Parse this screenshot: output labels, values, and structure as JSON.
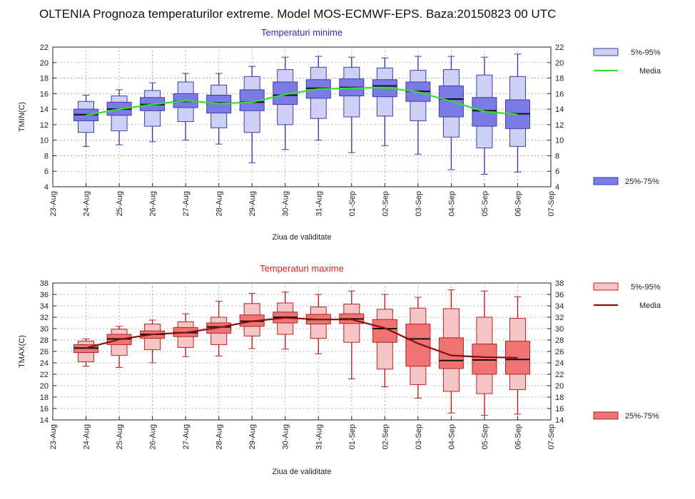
{
  "title": "OLTENIA  Prognoza temperaturilor extreme.  Model MOS-ECMWF-EPS. Baza:20150823 00 UTC",
  "chart_data": [
    {
      "type": "box",
      "title": "Temperaturi minime",
      "title_color": "#2a2ab8",
      "ylabel": "TMIN(C)",
      "xlabel": "Ziua de validitate",
      "ylim": [
        4,
        22
      ],
      "yticks": [
        4,
        6,
        8,
        10,
        12,
        14,
        16,
        18,
        20,
        22
      ],
      "xticks": [
        "23-Aug",
        "24-Aug",
        "25-Aug",
        "26-Aug",
        "27-Aug",
        "28-Aug",
        "29-Aug",
        "30-Aug",
        "31-Aug",
        "01-Sep",
        "02-Sep",
        "03-Sep",
        "04-Sep",
        "05-Sep",
        "06-Sep",
        "07-Sep"
      ],
      "colors": {
        "outer": "#cfd0f5",
        "inner": "#7b7be6",
        "edge": "#3d3da8",
        "mean": "#33dd33"
      },
      "legend": {
        "outer_label": "5%-95%",
        "mean_label": "Media",
        "inner_label": "25%-75%",
        "position": "right"
      },
      "boxes": [
        {
          "day": "24-Aug",
          "p5": 9.2,
          "p25": 12.5,
          "median": 13.3,
          "p75": 14.0,
          "p95": 15.8,
          "p5_box": 11.0,
          "p95_box": 15.0
        },
        {
          "day": "25-Aug",
          "p5": 9.4,
          "p25": 13.2,
          "median": 14.0,
          "p75": 14.9,
          "p95": 16.5,
          "p5_box": 11.2,
          "p95_box": 15.7
        },
        {
          "day": "26-Aug",
          "p5": 9.8,
          "p25": 13.8,
          "median": 14.6,
          "p75": 15.5,
          "p95": 17.4,
          "p5_box": 11.8,
          "p95_box": 16.4
        },
        {
          "day": "27-Aug",
          "p5": 10.0,
          "p25": 14.2,
          "median": 15.0,
          "p75": 16.0,
          "p95": 18.6,
          "p5_box": 12.4,
          "p95_box": 17.5
        },
        {
          "day": "28-Aug",
          "p5": 9.5,
          "p25": 13.5,
          "median": 14.8,
          "p75": 15.8,
          "p95": 18.6,
          "p5_box": 11.6,
          "p95_box": 17.1
        },
        {
          "day": "29-Aug",
          "p5": 7.1,
          "p25": 13.8,
          "median": 14.9,
          "p75": 16.5,
          "p95": 19.5,
          "p5_box": 11.0,
          "p95_box": 18.2
        },
        {
          "day": "30-Aug",
          "p5": 8.8,
          "p25": 14.6,
          "median": 15.8,
          "p75": 17.5,
          "p95": 20.7,
          "p5_box": 12.0,
          "p95_box": 19.1
        },
        {
          "day": "31-Aug",
          "p5": 10.0,
          "p25": 15.4,
          "median": 16.7,
          "p75": 17.8,
          "p95": 20.8,
          "p5_box": 12.8,
          "p95_box": 19.4
        },
        {
          "day": "01-Sep",
          "p5": 8.4,
          "p25": 15.7,
          "median": 16.8,
          "p75": 17.9,
          "p95": 20.7,
          "p5_box": 13.0,
          "p95_box": 19.4
        },
        {
          "day": "02-Sep",
          "p5": 9.3,
          "p25": 15.6,
          "median": 17.0,
          "p75": 17.8,
          "p95": 20.6,
          "p5_box": 13.1,
          "p95_box": 19.3
        },
        {
          "day": "03-Sep",
          "p5": 8.2,
          "p25": 15.0,
          "median": 16.3,
          "p75": 17.5,
          "p95": 20.8,
          "p5_box": 12.5,
          "p95_box": 19.0
        },
        {
          "day": "04-Sep",
          "p5": 6.2,
          "p25": 13.0,
          "median": 15.3,
          "p75": 17.0,
          "p95": 20.8,
          "p5_box": 10.4,
          "p95_box": 19.1
        },
        {
          "day": "05-Sep",
          "p5": 5.6,
          "p25": 11.8,
          "median": 13.8,
          "p75": 15.5,
          "p95": 20.7,
          "p5_box": 9.0,
          "p95_box": 18.4
        },
        {
          "day": "06-Sep",
          "p5": 5.9,
          "p25": 11.5,
          "median": 13.4,
          "p75": 15.2,
          "p95": 21.1,
          "p5_box": 9.2,
          "p95_box": 18.2
        }
      ],
      "mean": [
        13.2,
        14.0,
        14.6,
        15.1,
        14.7,
        14.9,
        15.9,
        16.6,
        16.7,
        16.8,
        16.2,
        15.0,
        13.7,
        13.3
      ]
    },
    {
      "type": "box",
      "title": "Temperaturi maxime",
      "title_color": "#e02020",
      "ylabel": "TMAX(C)",
      "xlabel": "Ziua de validitate",
      "ylim": [
        14,
        38
      ],
      "yticks": [
        14,
        16,
        18,
        20,
        22,
        24,
        26,
        28,
        30,
        32,
        34,
        36,
        38
      ],
      "xticks": [
        "23-Aug",
        "24-Aug",
        "25-Aug",
        "26-Aug",
        "27-Aug",
        "28-Aug",
        "29-Aug",
        "30-Aug",
        "31-Aug",
        "01-Sep",
        "02-Sep",
        "03-Sep",
        "04-Sep",
        "05-Sep",
        "06-Sep",
        "07-Sep"
      ],
      "colors": {
        "outer": "#f6c6c6",
        "inner": "#ee7373",
        "edge": "#b82020",
        "mean": "#8a1010"
      },
      "legend": {
        "outer_label": "5%-95%",
        "mean_label": "Media",
        "inner_label": "25%-75%",
        "position": "right"
      },
      "boxes": [
        {
          "day": "24-Aug",
          "p5": 23.4,
          "p25": 25.8,
          "median": 26.6,
          "p75": 27.2,
          "p95": 28.2,
          "p5_box": 24.2,
          "p95_box": 27.8
        },
        {
          "day": "25-Aug",
          "p5": 23.2,
          "p25": 27.2,
          "median": 28.2,
          "p75": 29.0,
          "p95": 30.4,
          "p5_box": 25.3,
          "p95_box": 29.9
        },
        {
          "day": "26-Aug",
          "p5": 24.0,
          "p25": 28.3,
          "median": 29.0,
          "p75": 29.6,
          "p95": 31.5,
          "p5_box": 26.3,
          "p95_box": 30.8
        },
        {
          "day": "27-Aug",
          "p5": 25.1,
          "p25": 28.6,
          "median": 29.3,
          "p75": 30.2,
          "p95": 32.6,
          "p5_box": 26.7,
          "p95_box": 31.2
        },
        {
          "day": "28-Aug",
          "p5": 25.2,
          "p25": 29.2,
          "median": 30.3,
          "p75": 31.0,
          "p95": 34.8,
          "p5_box": 27.2,
          "p95_box": 32.0
        },
        {
          "day": "29-Aug",
          "p5": 26.5,
          "p25": 30.4,
          "median": 31.3,
          "p75": 32.4,
          "p95": 36.2,
          "p5_box": 28.7,
          "p95_box": 34.4
        },
        {
          "day": "30-Aug",
          "p5": 26.4,
          "p25": 31.0,
          "median": 32.0,
          "p75": 32.9,
          "p95": 36.4,
          "p5_box": 29.0,
          "p95_box": 34.5
        },
        {
          "day": "31-Aug",
          "p5": 25.6,
          "p25": 30.8,
          "median": 31.6,
          "p75": 32.5,
          "p95": 36.0,
          "p5_box": 28.3,
          "p95_box": 33.8
        },
        {
          "day": "01-Sep",
          "p5": 21.2,
          "p25": 30.9,
          "median": 31.7,
          "p75": 32.6,
          "p95": 36.6,
          "p5_box": 27.6,
          "p95_box": 34.3
        },
        {
          "day": "02-Sep",
          "p5": 19.8,
          "p25": 27.6,
          "median": 30.0,
          "p75": 31.6,
          "p95": 36.0,
          "p5_box": 22.9,
          "p95_box": 33.4
        },
        {
          "day": "03-Sep",
          "p5": 17.8,
          "p25": 23.4,
          "median": 28.2,
          "p75": 30.8,
          "p95": 35.5,
          "p5_box": 20.2,
          "p95_box": 33.6
        },
        {
          "day": "04-Sep",
          "p5": 15.2,
          "p25": 23.0,
          "median": 24.4,
          "p75": 28.4,
          "p95": 36.8,
          "p5_box": 19.0,
          "p95_box": 33.5
        },
        {
          "day": "05-Sep",
          "p5": 14.8,
          "p25": 22.0,
          "median": 24.5,
          "p75": 27.3,
          "p95": 36.6,
          "p5_box": 18.6,
          "p95_box": 32.0
        },
        {
          "day": "06-Sep",
          "p5": 15.0,
          "p25": 22.0,
          "median": 24.6,
          "p75": 27.8,
          "p95": 35.6,
          "p5_box": 19.3,
          "p95_box": 31.8
        }
      ],
      "mean": [
        26.6,
        28.1,
        29.0,
        29.3,
        30.2,
        31.3,
        31.9,
        31.6,
        31.6,
        30.1,
        27.4,
        25.3,
        25.0,
        24.9
      ]
    }
  ]
}
